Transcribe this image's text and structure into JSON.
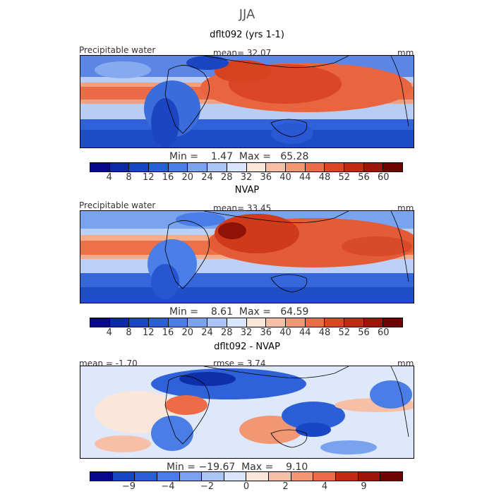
{
  "season": "JJA",
  "panels": [
    {
      "title": "dflt092 (yrs 1-1)",
      "left_label": "Precipitable water",
      "center_label": "mean=  32.07",
      "units": "mm",
      "stats": "Min =    1.47  Max =   65.28",
      "colorbar": {
        "colors": [
          "#08088c",
          "#0b2aa8",
          "#1846c4",
          "#2a5fd8",
          "#4a7ee6",
          "#7aa3ef",
          "#a9c4f5",
          "#d9e5fb",
          "#fbe6da",
          "#f7c0a6",
          "#f29774",
          "#eb6c47",
          "#dc4524",
          "#c22a12",
          "#9e1408",
          "#6e0303"
        ],
        "ticks": [
          "4",
          "8",
          "12",
          "16",
          "20",
          "24",
          "28",
          "32",
          "36",
          "40",
          "44",
          "48",
          "52",
          "56",
          "60"
        ]
      }
    },
    {
      "title": "NVAP",
      "left_label": "Precipitable water",
      "center_label": "mean=  33.45",
      "units": "mm",
      "stats": "Min =    8.61  Max =   64.59",
      "colorbar": {
        "colors": [
          "#08088c",
          "#0b2aa8",
          "#1846c4",
          "#2a5fd8",
          "#4a7ee6",
          "#7aa3ef",
          "#a9c4f5",
          "#d9e5fb",
          "#fbe6da",
          "#f7c0a6",
          "#f29774",
          "#eb6c47",
          "#dc4524",
          "#c22a12",
          "#9e1408",
          "#6e0303"
        ],
        "ticks": [
          "4",
          "8",
          "12",
          "16",
          "20",
          "24",
          "28",
          "32",
          "36",
          "40",
          "44",
          "48",
          "52",
          "56",
          "60"
        ]
      }
    },
    {
      "title": "dflt092 - NVAP",
      "left_label": "mean =  -1.70",
      "center_label": "rmse =    3.74",
      "units": "mm",
      "stats": "Min = −19.67  Max =    9.10",
      "colorbar": {
        "colors": [
          "#08088c",
          "#1846c4",
          "#2a5fd8",
          "#4a7ee6",
          "#7aa3ef",
          "#a9c4f5",
          "#d9e5fb",
          "#fbe6da",
          "#f7c0a6",
          "#f29774",
          "#eb6c47",
          "#c22a12",
          "#9e1408",
          "#6e0303"
        ],
        "ticks": [
          "−9",
          "−4",
          "−2",
          "0",
          "2",
          "4",
          "9"
        ]
      }
    }
  ]
}
